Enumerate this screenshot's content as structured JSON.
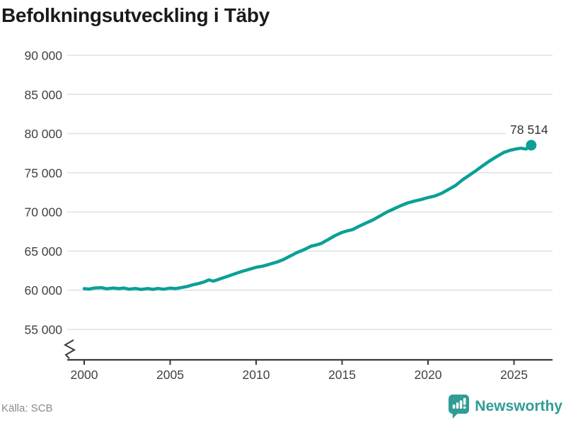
{
  "chart_data": {
    "type": "line",
    "title": "Befolkningsutveckling i Täby",
    "source": "Källa: SCB",
    "xlim": [
      1999,
      2027.3
    ],
    "ylim": [
      55000,
      90000
    ],
    "axis_break": true,
    "grid": "horizontal",
    "y_ticks": [
      {
        "value": 90000,
        "label": "90 000"
      },
      {
        "value": 85000,
        "label": "85 000"
      },
      {
        "value": 80000,
        "label": "80 000"
      },
      {
        "value": 75000,
        "label": "75 000"
      },
      {
        "value": 70000,
        "label": "70 000"
      },
      {
        "value": 65000,
        "label": "65 000"
      },
      {
        "value": 60000,
        "label": "60 000"
      },
      {
        "value": 55000,
        "label": "55 000"
      }
    ],
    "x_ticks": [
      {
        "year": 2000,
        "label": "2000"
      },
      {
        "year": 2005,
        "label": "2005"
      },
      {
        "year": 2010,
        "label": "2010"
      },
      {
        "year": 2015,
        "label": "2015"
      },
      {
        "year": 2020,
        "label": "2020"
      },
      {
        "year": 2025,
        "label": "2025"
      }
    ],
    "series": [
      [
        2000.0,
        60200
      ],
      [
        2000.3,
        60150
      ],
      [
        2000.6,
        60280
      ],
      [
        2001.0,
        60330
      ],
      [
        2001.3,
        60180
      ],
      [
        2001.7,
        60280
      ],
      [
        2002.0,
        60200
      ],
      [
        2002.3,
        60280
      ],
      [
        2002.6,
        60130
      ],
      [
        2003.0,
        60220
      ],
      [
        2003.3,
        60100
      ],
      [
        2003.7,
        60210
      ],
      [
        2004.0,
        60110
      ],
      [
        2004.3,
        60230
      ],
      [
        2004.6,
        60130
      ],
      [
        2005.0,
        60260
      ],
      [
        2005.3,
        60200
      ],
      [
        2005.6,
        60320
      ],
      [
        2006.0,
        60480
      ],
      [
        2006.3,
        60680
      ],
      [
        2006.6,
        60820
      ],
      [
        2007.0,
        61080
      ],
      [
        2007.25,
        61320
      ],
      [
        2007.5,
        61160
      ],
      [
        2007.75,
        61330
      ],
      [
        2008.0,
        61520
      ],
      [
        2008.4,
        61820
      ],
      [
        2008.8,
        62120
      ],
      [
        2009.2,
        62420
      ],
      [
        2009.6,
        62670
      ],
      [
        2010.0,
        62920
      ],
      [
        2010.4,
        63080
      ],
      [
        2010.8,
        63330
      ],
      [
        2011.2,
        63580
      ],
      [
        2011.6,
        63930
      ],
      [
        2012.0,
        64380
      ],
      [
        2012.4,
        64830
      ],
      [
        2012.8,
        65180
      ],
      [
        2013.2,
        65630
      ],
      [
        2013.5,
        65780
      ],
      [
        2013.8,
        65980
      ],
      [
        2014.2,
        66480
      ],
      [
        2014.6,
        66980
      ],
      [
        2015.0,
        67380
      ],
      [
        2015.3,
        67580
      ],
      [
        2015.6,
        67730
      ],
      [
        2016.0,
        68180
      ],
      [
        2016.4,
        68580
      ],
      [
        2016.8,
        68980
      ],
      [
        2017.2,
        69480
      ],
      [
        2017.6,
        69980
      ],
      [
        2018.0,
        70380
      ],
      [
        2018.4,
        70780
      ],
      [
        2018.8,
        71130
      ],
      [
        2019.2,
        71380
      ],
      [
        2019.6,
        71580
      ],
      [
        2020.0,
        71830
      ],
      [
        2020.4,
        72030
      ],
      [
        2020.8,
        72380
      ],
      [
        2021.2,
        72880
      ],
      [
        2021.6,
        73380
      ],
      [
        2022.0,
        74080
      ],
      [
        2022.4,
        74680
      ],
      [
        2022.8,
        75280
      ],
      [
        2023.2,
        75930
      ],
      [
        2023.6,
        76530
      ],
      [
        2024.0,
        77080
      ],
      [
        2024.4,
        77580
      ],
      [
        2024.8,
        77880
      ],
      [
        2025.1,
        78030
      ],
      [
        2025.4,
        78130
      ],
      [
        2025.7,
        78030
      ],
      [
        2026.0,
        78514
      ]
    ],
    "end_point": {
      "value": 78514,
      "label": "78 514"
    }
  },
  "footer": {
    "brand_label": "Newsworthy"
  },
  "colors": {
    "line": "#0aa096",
    "title": "#1a1a1a",
    "tick_text": "#424242",
    "gridline": "#e2e2e2",
    "axis": "#3a3a3a",
    "end_label_text": "#333333",
    "source_text": "#8a8a8a",
    "logo": "#2f9d96"
  }
}
